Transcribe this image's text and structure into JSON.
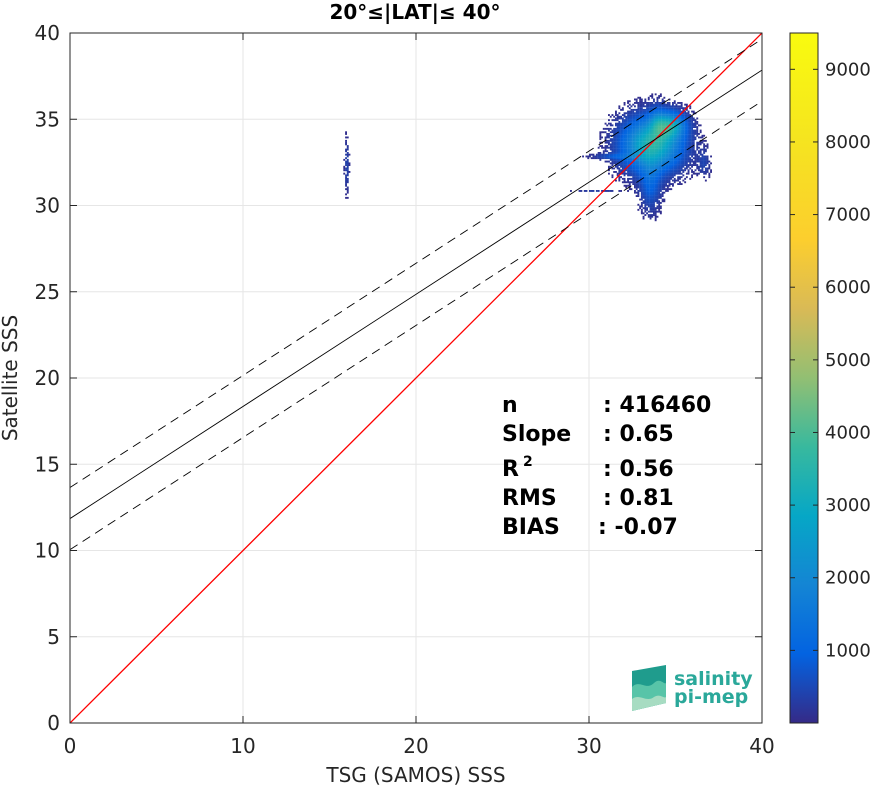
{
  "chart_data": {
    "type": "heatmap",
    "title": "20°≤|LAT|≤ 40°",
    "xlabel": "TSG (SAMOS) SSS",
    "ylabel": "Satellite SSS",
    "xlim": [
      0,
      40
    ],
    "ylim": [
      0,
      40
    ],
    "xticks": [
      "0",
      "10",
      "20",
      "30",
      "40"
    ],
    "yticks": [
      "0",
      "5",
      "10",
      "15",
      "20",
      "25",
      "30",
      "35",
      "40"
    ],
    "grid": true,
    "colorbar": {
      "range": [
        0,
        9500
      ],
      "ticks": [
        "1000",
        "2000",
        "3000",
        "4000",
        "5000",
        "6000",
        "7000",
        "8000",
        "9000"
      ],
      "colormap": "parula"
    },
    "lines": [
      {
        "role": "identity",
        "color": "#ff0000",
        "style": "solid",
        "x": [
          0,
          40
        ],
        "y": [
          0,
          40
        ]
      },
      {
        "role": "fit",
        "color": "#000000",
        "style": "solid",
        "x": [
          0,
          40
        ],
        "y": [
          11.85,
          37.85
        ]
      },
      {
        "role": "fit-upper",
        "color": "#000000",
        "style": "dashed",
        "x": [
          0,
          40
        ],
        "y": [
          13.65,
          39.65
        ]
      },
      {
        "role": "fit-lower",
        "color": "#000000",
        "style": "dashed",
        "x": [
          0,
          40
        ],
        "y": [
          10.05,
          36.05
        ]
      }
    ],
    "density_clusters": [
      {
        "cx": 33.6,
        "cy": 33.5,
        "sx": 1.1,
        "sy": 1.0,
        "peak": 3500
      },
      {
        "cx": 34.6,
        "cy": 34.6,
        "sx": 0.6,
        "sy": 0.5,
        "peak": 2400
      },
      {
        "cx": 33.5,
        "cy": 31.2,
        "sx": 0.4,
        "sy": 1.0,
        "peak": 900
      },
      {
        "cx": 33.9,
        "cy": 34.8,
        "sx": 0.3,
        "sy": 0.6,
        "peak": 700
      },
      {
        "cx": 31.5,
        "cy": 32.8,
        "sx": 0.9,
        "sy": 0.12,
        "peak": 600
      },
      {
        "cx": 15.95,
        "cy": 32.3,
        "sx": 0.08,
        "sy": 1.0,
        "peak": 450
      },
      {
        "cx": 36.6,
        "cy": 32.4,
        "sx": 0.25,
        "sy": 0.55,
        "peak": 400
      },
      {
        "cx": 30.4,
        "cy": 30.8,
        "sx": 1.0,
        "sy": 0.05,
        "peak": 300
      }
    ],
    "stats": [
      {
        "label": "n",
        "value": ": 416460"
      },
      {
        "label": "Slope",
        "value": ": 0.65"
      },
      {
        "label": "R",
        "sup": "2",
        "value": ": 0.56"
      },
      {
        "label": "RMS",
        "value": ": 0.81"
      },
      {
        "label": "BIAS",
        "value": ": -0.07"
      }
    ]
  },
  "logo": {
    "line1": "salinity",
    "line2": "pi-mep",
    "colors": [
      "#1f9c8d",
      "#58c4a8",
      "#a7dcc2"
    ]
  }
}
